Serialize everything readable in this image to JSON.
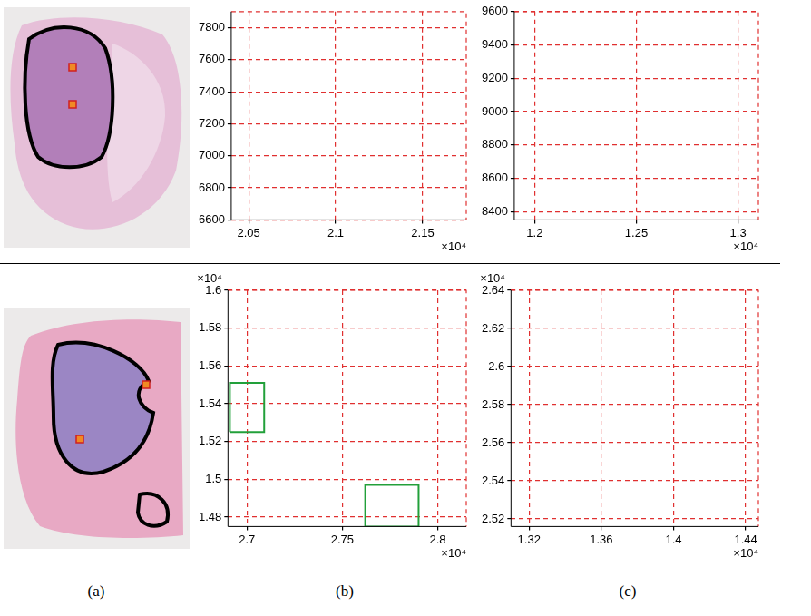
{
  "captions": [
    "(a)",
    "(b)",
    "(c)"
  ],
  "chart_data": [
    {
      "type": "scatter",
      "panel": "(b)",
      "row": 1,
      "xlim": [
        2.04,
        2.175
      ],
      "xticks": [
        2.05,
        2.1,
        2.15
      ],
      "x_multiplier": "×10⁴",
      "ylim": [
        6600,
        7900
      ],
      "yticks": [
        6600,
        6800,
        7000,
        7200,
        7400,
        7600,
        7800
      ],
      "grid": true
    },
    {
      "type": "scatter",
      "panel": "(c)",
      "row": 1,
      "xlim": [
        1.19,
        1.31
      ],
      "xticks": [
        1.2,
        1.25,
        1.3
      ],
      "x_multiplier": "×10⁴",
      "ylim": [
        8350,
        9600
      ],
      "yticks": [
        8400,
        8600,
        8800,
        9000,
        9200,
        9400,
        9600
      ],
      "grid": true
    },
    {
      "type": "scatter",
      "panel": "(b)",
      "row": 2,
      "xlim": [
        2.69,
        2.815
      ],
      "xticks": [
        2.7,
        2.75,
        2.8
      ],
      "x_multiplier": "×10⁴",
      "ylim": [
        1.475,
        1.6
      ],
      "yticks": [
        1.48,
        1.5,
        1.52,
        1.54,
        1.56,
        1.58,
        1.6
      ],
      "y_multiplier": "×10⁴",
      "grid": true,
      "highlight_boxes": [
        {
          "x": [
            2.691,
            2.709
          ],
          "y": [
            1.525,
            1.551
          ]
        },
        {
          "x": [
            2.762,
            2.79
          ],
          "y": [
            1.475,
            1.497
          ]
        }
      ]
    },
    {
      "type": "scatter",
      "panel": "(c)",
      "row": 2,
      "xlim": [
        1.31,
        1.447
      ],
      "xticks": [
        1.32,
        1.36,
        1.4,
        1.44
      ],
      "x_multiplier": "×10⁴",
      "ylim": [
        2.516,
        2.64
      ],
      "yticks": [
        2.52,
        2.54,
        2.56,
        2.58,
        2.6,
        2.62,
        2.64
      ],
      "y_multiplier": "×10⁴",
      "grid": true
    }
  ]
}
